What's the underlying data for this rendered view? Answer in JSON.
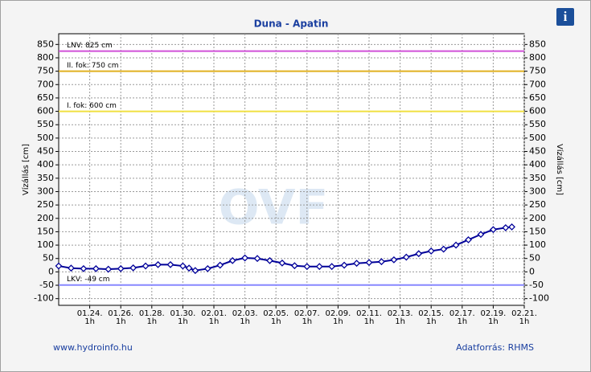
{
  "chart_data": {
    "type": "line",
    "title": "Duna - Apatin",
    "y_label": "Vízállás [cm]",
    "y2_label": "Vízállás [cm]",
    "watermark": "OVF",
    "footer_left": "www.hydroinfo.hu",
    "footer_right": "Adatforrás: RHMS",
    "info_icon": "i",
    "xlim": [
      0,
      30
    ],
    "xticks": [
      {
        "value": 2,
        "label": "01.24."
      },
      {
        "value": 4,
        "label": "01.26."
      },
      {
        "value": 6,
        "label": "01.28."
      },
      {
        "value": 8,
        "label": "01.30."
      },
      {
        "value": 10,
        "label": "02.01."
      },
      {
        "value": 12,
        "label": "02.03."
      },
      {
        "value": 14,
        "label": "02.05."
      },
      {
        "value": 16,
        "label": "02.07."
      },
      {
        "value": 18,
        "label": "02.09."
      },
      {
        "value": 20,
        "label": "02.11."
      },
      {
        "value": 22,
        "label": "02.13."
      },
      {
        "value": 24,
        "label": "02.15."
      },
      {
        "value": 26,
        "label": "02.17."
      },
      {
        "value": 28,
        "label": "02.19."
      },
      {
        "value": 30,
        "label": "02.21."
      }
    ],
    "xtick_sublabel": "1h",
    "ylim": [
      -125,
      890
    ],
    "yticks": [
      -100,
      -50,
      0,
      50,
      100,
      150,
      200,
      250,
      300,
      350,
      400,
      450,
      500,
      550,
      600,
      650,
      700,
      750,
      800,
      850
    ],
    "y2lim": [
      -125,
      890
    ],
    "y2ticks": [
      -100,
      -50,
      0,
      50,
      100,
      150,
      200,
      250,
      300,
      350,
      400,
      450,
      500,
      550,
      600,
      650,
      700,
      750,
      800,
      850
    ],
    "grid": true,
    "reference_lines": [
      {
        "label": "LNV: 825 cm",
        "value": 825,
        "color": "#d050d8"
      },
      {
        "label": "II. fok: 750 cm",
        "value": 750,
        "color": "#e0b020"
      },
      {
        "label": "I. fok: 600 cm",
        "value": 600,
        "color": "#f0e040"
      },
      {
        "label": "LKV: -49 cm",
        "value": -49,
        "color": "#8888ff"
      }
    ],
    "series": [
      {
        "name": "Vízállás",
        "color": "#000099",
        "x": [
          0,
          0.8,
          1.6,
          2.4,
          3.2,
          4,
          4.8,
          5.6,
          6.4,
          7.2,
          8,
          8.4,
          8.8,
          9.6,
          10.4,
          11.2,
          12,
          12.8,
          13.6,
          14.4,
          15.2,
          16,
          16.8,
          17.6,
          18.4,
          19.2,
          20,
          20.8,
          21.6,
          22.4,
          23.2,
          24,
          24.8,
          25.6,
          26.4,
          27.2,
          28,
          28.8,
          29.2
        ],
        "values": [
          22,
          14,
          12,
          12,
          10,
          12,
          15,
          22,
          27,
          27,
          22,
          14,
          5,
          12,
          25,
          42,
          52,
          50,
          42,
          33,
          23,
          20,
          20,
          20,
          25,
          32,
          35,
          38,
          45,
          55,
          68,
          78,
          85,
          100,
          120,
          140,
          158,
          165,
          168
        ]
      }
    ]
  }
}
